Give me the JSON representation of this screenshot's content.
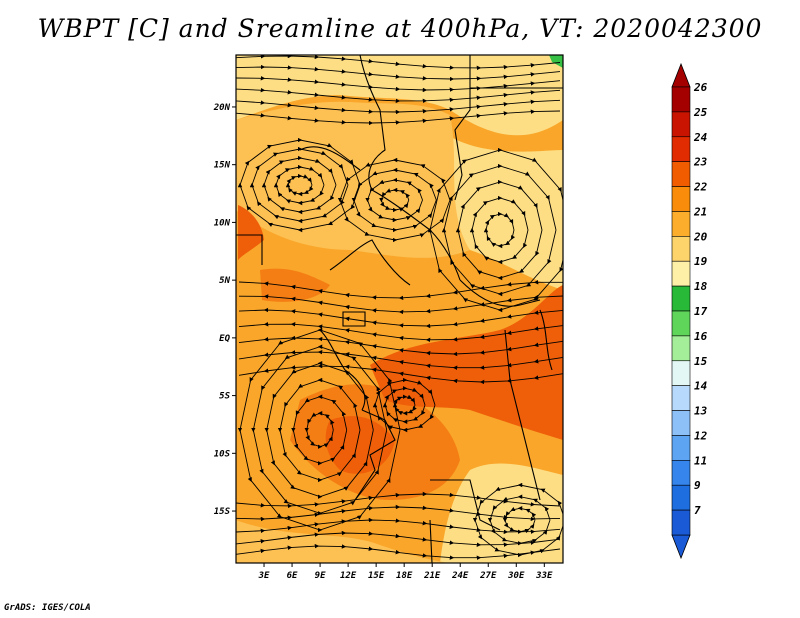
{
  "title": "WBPT [C] and Sreamline at 400hPa, VT: 2020042300",
  "credit": "GrADS: IGES/COLA",
  "map": {
    "lat_labels": [
      "20N",
      "15N",
      "10N",
      "5N",
      "EQ",
      "5S",
      "10S",
      "15S"
    ],
    "lon_labels": [
      "3E",
      "6E",
      "9E",
      "12E",
      "15E",
      "18E",
      "21E",
      "24E",
      "27E",
      "30E",
      "33E"
    ],
    "lat_values": [
      20,
      15,
      10,
      5,
      0,
      -5,
      -10,
      -15
    ],
    "lon_values": [
      3,
      6,
      9,
      12,
      15,
      18,
      21,
      24,
      27,
      30,
      33
    ],
    "lon_range": [
      0,
      35
    ],
    "lat_range": [
      -19.5,
      24.5
    ]
  },
  "colorbar": {
    "labels": [
      "26",
      "25",
      "24",
      "23",
      "22",
      "21",
      "20",
      "19",
      "18",
      "17",
      "16",
      "15",
      "14",
      "13",
      "12",
      "11",
      "9",
      "7"
    ],
    "colors": [
      "#a50000",
      "#c81400",
      "#e12b00",
      "#f25c00",
      "#f98c0a",
      "#fcad2b",
      "#fdd36b",
      "#fff0a8",
      "#29b939",
      "#5fd55a",
      "#a4ee9a",
      "#e3f7f5",
      "#b7dafc",
      "#8cc0f7",
      "#5da5f2",
      "#3585ec",
      "#1e6ee0",
      "#1a5ad6"
    ],
    "top_color": "#a50000",
    "bottom_color": "#1a5ad6"
  },
  "field_colors": {
    "c19": "#fdde84",
    "c20": "#fdc052",
    "c21": "#f9a62a",
    "c22": "#f47e14",
    "c23": "#ef5e08",
    "green": "#36c046"
  }
}
